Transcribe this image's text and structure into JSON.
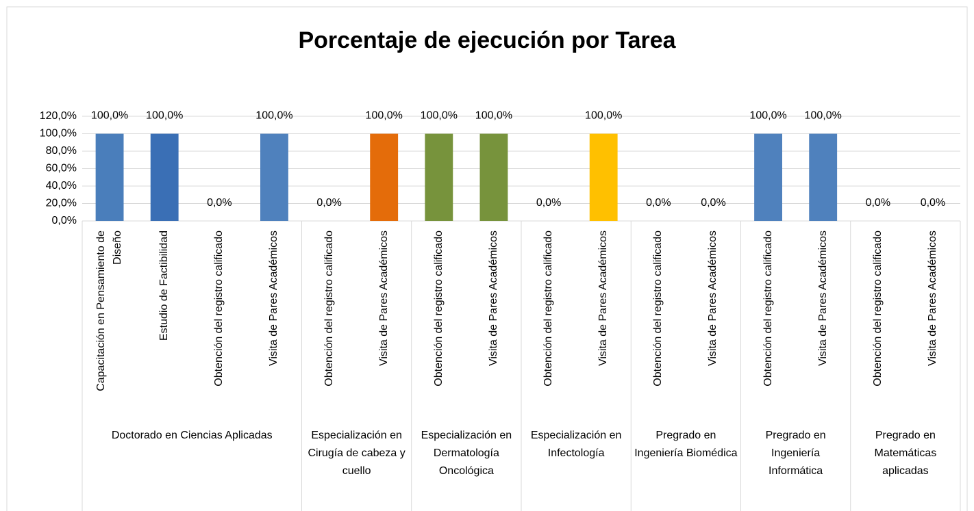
{
  "chart_data": {
    "type": "bar",
    "title": "Porcentaje de ejecución por Tarea",
    "groups": [
      {
        "name": "Doctorado en Ciencias Aplicadas",
        "categories": [
          "Capacitación en Pensamiento de Diseño",
          "Estudio de Factibilidad",
          "Obtención del registro calificado",
          "Visita de Pares Académicos"
        ]
      },
      {
        "name": "Especialización en Cirugía de cabeza y cuello",
        "categories": [
          "Obtención del registro calificado",
          "Visita de Pares Académicos"
        ]
      },
      {
        "name": "Especialización en Dermatología Oncológica",
        "categories": [
          "Obtención del registro calificado",
          "Visita de Pares Académicos"
        ]
      },
      {
        "name": "Especialización en Infectología",
        "categories": [
          "Obtención del registro calificado",
          "Visita de Pares Académicos"
        ]
      },
      {
        "name": "Pregrado en Ingeniería Biomédica",
        "categories": [
          "Obtención del registro calificado",
          "Visita de Pares Académicos"
        ]
      },
      {
        "name": "Pregrado en Ingeniería Informática",
        "categories": [
          "Obtención del registro calificado",
          "Visita de Pares Académicos"
        ]
      },
      {
        "name": "Pregrado en Matemáticas aplicadas",
        "categories": [
          "Obtención del registro calificado",
          "Visita de Pares Académicos"
        ]
      }
    ],
    "values": [
      100,
      100,
      0,
      100,
      0,
      100,
      100,
      100,
      0,
      100,
      0,
      0,
      100,
      100,
      0,
      0
    ],
    "value_labels": [
      "100,0%",
      "100,0%",
      "0,0%",
      "100,0%",
      "0,0%",
      "100,0%",
      "100,0%",
      "100,0%",
      "0,0%",
      "100,0%",
      "0,0%",
      "0,0%",
      "100,0%",
      "100,0%",
      "0,0%",
      "0,0%"
    ],
    "colors": [
      "#4a7ebb",
      "#3a6fb5",
      "#4a7ebb",
      "#4f81bd",
      "#e46c0a",
      "#e46c0a",
      "#77933c",
      "#77933c",
      "#ffc000",
      "#ffc000",
      "#4f81bd",
      "#4f81bd",
      "#4f81bd",
      "#4f81bd",
      "#4f81bd",
      "#4f81bd"
    ],
    "ylim": [
      0,
      120
    ],
    "yticks": [
      {
        "value": 0,
        "label": "0,0%"
      },
      {
        "value": 20,
        "label": "20,0%"
      },
      {
        "value": 40,
        "label": "40,0%"
      },
      {
        "value": 60,
        "label": "60,0%"
      },
      {
        "value": 80,
        "label": "80,0%"
      },
      {
        "value": 100,
        "label": "100,0%"
      },
      {
        "value": 120,
        "label": "120,0%"
      }
    ],
    "grid": true
  }
}
